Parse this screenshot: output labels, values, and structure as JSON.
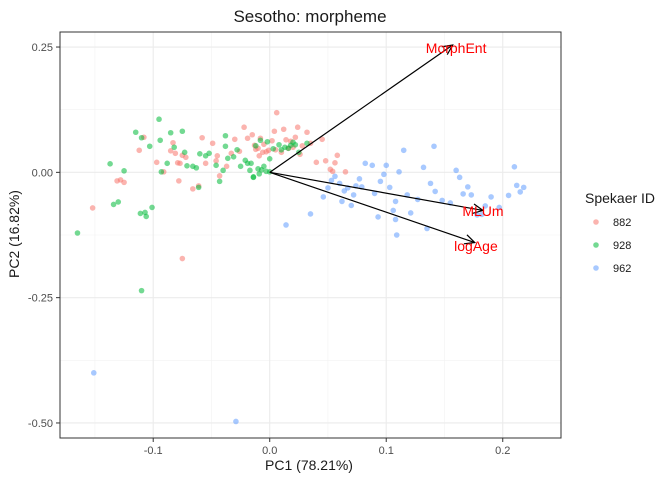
{
  "chart_data": {
    "type": "scatter",
    "title": "Sesotho: morpheme",
    "xlabel": "PC1 (78.21%)",
    "ylabel": "PC2 (16.82%)",
    "xlim": [
      -0.18,
      0.25
    ],
    "ylim": [
      -0.53,
      0.28
    ],
    "x_ticks": [
      -0.1,
      0.0,
      0.1,
      0.2
    ],
    "x_tick_labels": [
      "-0.1",
      "0.0",
      "0.1",
      "0.2"
    ],
    "y_ticks": [
      -0.5,
      -0.25,
      0.0,
      0.25
    ],
    "y_tick_labels": [
      "-0.50",
      "-0.25",
      "0.00",
      "0.25"
    ],
    "grid": true,
    "legend": {
      "title": "Spekaer ID",
      "placement": "right"
    },
    "series": [
      {
        "name": "882",
        "color": "#F8766D",
        "points": [
          [
            -0.152,
            -0.071
          ],
          [
            -0.131,
            -0.017
          ],
          [
            -0.128,
            -0.015
          ],
          [
            -0.125,
            -0.02
          ],
          [
            -0.112,
            0.044
          ],
          [
            -0.108,
            0.07
          ],
          [
            -0.097,
            0.02
          ],
          [
            -0.091,
            0.001
          ],
          [
            -0.085,
            0.043
          ],
          [
            -0.083,
            0.059
          ],
          [
            -0.081,
            0.038
          ],
          [
            -0.079,
            0.019
          ],
          [
            -0.077,
            0.018
          ],
          [
            -0.075,
            0.034
          ],
          [
            -0.072,
            0.03
          ],
          [
            -0.078,
            -0.017
          ],
          [
            -0.075,
            -0.172
          ],
          [
            -0.066,
            -0.033
          ],
          [
            -0.061,
            -0.027
          ],
          [
            -0.058,
            0.069
          ],
          [
            -0.055,
            0.018
          ],
          [
            -0.049,
            0.058
          ],
          [
            -0.046,
            0.023
          ],
          [
            -0.045,
            0.033
          ],
          [
            -0.043,
            -0.007
          ],
          [
            -0.037,
            0.012
          ],
          [
            -0.033,
            0.038
          ],
          [
            -0.03,
            0.066
          ],
          [
            -0.026,
            0.042
          ],
          [
            -0.022,
            0.09
          ],
          [
            -0.019,
            0.068
          ],
          [
            -0.015,
            0.075
          ],
          [
            -0.013,
            0.054
          ],
          [
            -0.012,
            0.046
          ],
          [
            -0.01,
            0.048
          ],
          [
            -0.009,
            0.033
          ],
          [
            -0.008,
            0.068
          ],
          [
            -0.006,
            0.04
          ],
          [
            -0.005,
            0.056
          ],
          [
            -0.003,
            0.041
          ],
          [
            -0.001,
            0.044
          ],
          [
            0.002,
            0.063
          ],
          [
            0.004,
            0.082
          ],
          [
            0.005,
            0.045
          ],
          [
            0.006,
            0.119
          ],
          [
            0.01,
            0.04
          ],
          [
            0.012,
            0.086
          ],
          [
            0.014,
            0.065
          ],
          [
            0.016,
            0.048
          ],
          [
            0.018,
            0.062
          ],
          [
            0.02,
            0.05
          ],
          [
            0.022,
            0.07
          ],
          [
            0.024,
            0.09
          ],
          [
            0.026,
            0.036
          ],
          [
            0.028,
            0.053
          ],
          [
            0.032,
            0.08
          ],
          [
            0.035,
            0.058
          ],
          [
            0.04,
            0.02
          ],
          [
            0.045,
            0.066
          ],
          [
            0.048,
            0.023
          ],
          [
            0.052,
            0.006
          ],
          [
            0.054,
            0.002
          ],
          [
            0.056,
            0.019
          ],
          [
            0.058,
            0.034
          ],
          [
            0.065,
            0.001
          ]
        ]
      },
      {
        "name": "928",
        "color": "#00BA38",
        "points": [
          [
            -0.165,
            -0.121
          ],
          [
            -0.137,
            0.017
          ],
          [
            -0.134,
            -0.064
          ],
          [
            -0.13,
            -0.059
          ],
          [
            -0.125,
            0.003
          ],
          [
            -0.115,
            0.08
          ],
          [
            -0.111,
            -0.082
          ],
          [
            -0.11,
            0.069
          ],
          [
            -0.107,
            -0.08
          ],
          [
            -0.106,
            -0.088
          ],
          [
            -0.103,
            0.052
          ],
          [
            -0.101,
            -0.07
          ],
          [
            -0.095,
            0.106
          ],
          [
            -0.094,
            0.064
          ],
          [
            -0.093,
            0.001
          ],
          [
            -0.088,
            0.018
          ],
          [
            -0.085,
            0.079
          ],
          [
            -0.082,
            0.05
          ],
          [
            -0.075,
            0.082
          ],
          [
            -0.073,
            0.04
          ],
          [
            -0.071,
            0.013
          ],
          [
            -0.066,
            0.012
          ],
          [
            -0.063,
            0.009
          ],
          [
            -0.061,
            -0.03
          ],
          [
            -0.06,
            0.037
          ],
          [
            -0.055,
            0.033
          ],
          [
            -0.052,
            0.038
          ],
          [
            -0.046,
            0.014
          ],
          [
            -0.043,
            -0.018
          ],
          [
            -0.04,
            0.004
          ],
          [
            -0.038,
            0.052
          ],
          [
            -0.036,
            0.028
          ],
          [
            -0.031,
            0.031
          ],
          [
            -0.028,
            0.045
          ],
          [
            -0.025,
            0.012
          ],
          [
            -0.021,
            0.024
          ],
          [
            -0.019,
            0.018
          ],
          [
            -0.016,
            0.018
          ],
          [
            -0.014,
            -0.01
          ],
          [
            -0.012,
            0.053
          ],
          [
            -0.01,
            0.007
          ],
          [
            -0.008,
            0.064
          ],
          [
            -0.007,
            0.005
          ],
          [
            -0.005,
            0.012
          ],
          [
            -0.003,
            0.002
          ],
          [
            -0.002,
            0.061
          ],
          [
            0.0,
            0.027
          ],
          [
            0.003,
            0.047
          ],
          [
            0.008,
            0.055
          ],
          [
            0.01,
            0.045
          ],
          [
            0.013,
            0.05
          ],
          [
            0.016,
            0.048
          ],
          [
            0.018,
            0.054
          ],
          [
            0.02,
            0.06
          ],
          [
            0.022,
            0.055
          ],
          [
            0.025,
            0.04
          ],
          [
            0.032,
            0.058
          ],
          [
            -0.038,
            0.073
          ],
          [
            -0.11,
            -0.236
          ],
          [
            0.0,
            0.001
          ],
          [
            -0.009,
            -0.003
          ],
          [
            -0.014,
            -0.009
          ],
          [
            -0.017,
            0.004
          ]
        ]
      },
      {
        "name": "962",
        "color": "#619CFF",
        "points": [
          [
            -0.151,
            -0.4
          ],
          [
            -0.029,
            -0.497
          ],
          [
            0.014,
            -0.105
          ],
          [
            0.035,
            -0.083
          ],
          [
            0.046,
            -0.049
          ],
          [
            0.05,
            -0.031
          ],
          [
            0.053,
            -0.016
          ],
          [
            0.056,
            -0.008
          ],
          [
            0.06,
            -0.022
          ],
          [
            0.062,
            -0.058
          ],
          [
            0.064,
            -0.037
          ],
          [
            0.067,
            -0.031
          ],
          [
            0.07,
            -0.066
          ],
          [
            0.072,
            -0.045
          ],
          [
            0.074,
            -0.027
          ],
          [
            0.077,
            -0.013
          ],
          [
            0.079,
            -0.029
          ],
          [
            0.082,
            0.018
          ],
          [
            0.088,
            0.014
          ],
          [
            0.09,
            -0.042
          ],
          [
            0.093,
            -0.089
          ],
          [
            0.095,
            -0.018
          ],
          [
            0.098,
            -0.004
          ],
          [
            0.1,
            0.014
          ],
          [
            0.103,
            -0.03
          ],
          [
            0.106,
            -0.076
          ],
          [
            0.108,
            -0.058
          ],
          [
            0.111,
            0.001
          ],
          [
            0.115,
            0.044
          ],
          [
            0.118,
            -0.045
          ],
          [
            0.121,
            -0.081
          ],
          [
            0.127,
            -0.054
          ],
          [
            0.132,
            0.01
          ],
          [
            0.138,
            -0.022
          ],
          [
            0.142,
            -0.038
          ],
          [
            0.148,
            -0.056
          ],
          [
            0.155,
            -0.061
          ],
          [
            0.16,
            0.004
          ],
          [
            0.163,
            -0.01
          ],
          [
            0.166,
            -0.043
          ],
          [
            0.17,
            -0.029
          ],
          [
            0.173,
            -0.045
          ],
          [
            0.178,
            -0.085
          ],
          [
            0.182,
            -0.084
          ],
          [
            0.185,
            -0.067
          ],
          [
            0.19,
            -0.049
          ],
          [
            0.197,
            -0.07
          ],
          [
            0.205,
            -0.046
          ],
          [
            0.21,
            0.011
          ],
          [
            0.212,
            -0.026
          ],
          [
            0.215,
            -0.039
          ],
          [
            0.218,
            -0.03
          ],
          [
            0.108,
            -0.094
          ],
          [
            0.135,
            -0.112
          ],
          [
            0.109,
            -0.125
          ],
          [
            0.141,
            0.052
          ]
        ]
      }
    ],
    "arrows": [
      {
        "label": "MorphEnt",
        "x": 0.157,
        "y": 0.254,
        "label_x": 0.16,
        "label_y": 0.248
      },
      {
        "label": "MLUm",
        "x": 0.183,
        "y": -0.076,
        "label_x": 0.183,
        "label_y": -0.077
      },
      {
        "label": "logAge",
        "x": 0.176,
        "y": -0.14,
        "label_x": 0.177,
        "label_y": -0.147
      }
    ],
    "arrow_color": "#000000",
    "arrow_label_color": "#FF0000"
  }
}
